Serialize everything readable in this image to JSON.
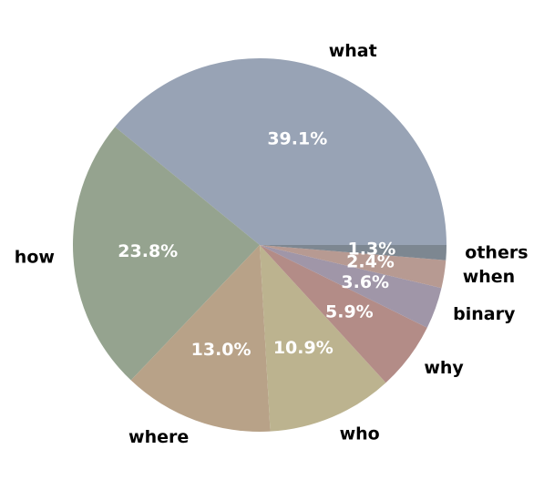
{
  "chart_data": {
    "type": "pie",
    "categories": [
      "what",
      "how",
      "where",
      "who",
      "why",
      "binary",
      "when",
      "others"
    ],
    "values": [
      39.1,
      23.8,
      13.0,
      10.9,
      5.9,
      3.6,
      2.4,
      1.3
    ],
    "value_labels": [
      "39.1%",
      "23.8%",
      "13.0%",
      "10.9%",
      "5.9%",
      "3.6%",
      "2.4%",
      "1.3%"
    ],
    "colors": [
      "#98a3b5",
      "#95a38f",
      "#b8a288",
      "#bcb38f",
      "#b38c87",
      "#a096a8",
      "#b79a92",
      "#7d8791"
    ]
  }
}
